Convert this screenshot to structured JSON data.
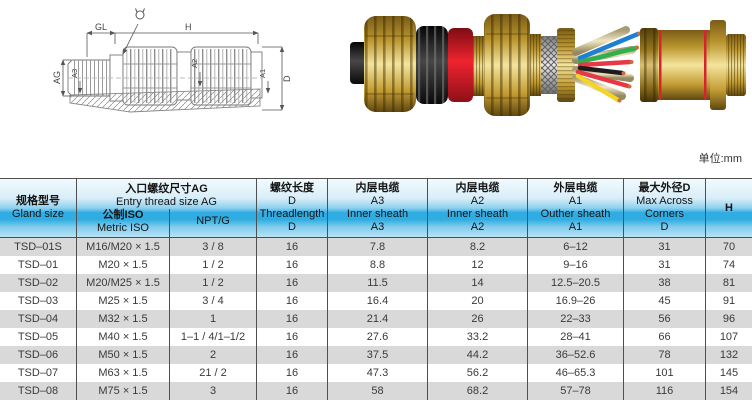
{
  "unit_note": "单位:mm",
  "drawing": {
    "labels": {
      "gl": "GL",
      "h": "H",
      "ag": "AG",
      "a3": "A3",
      "a2": "A2",
      "a1": "A1",
      "d": "D"
    }
  },
  "photo": {
    "description": "exploded brass cable gland with seals and colored wires",
    "wire_colors": [
      "#1f7fd0",
      "#2eb04c",
      "#e63946",
      "#1c1c1c",
      "#e63946",
      "#f4d427"
    ]
  },
  "colors": {
    "header_blue": "#2fade3",
    "row_stripe": "#d9d9d9",
    "brass": "#c9a53e",
    "seal_red": "#e0202b",
    "seal_black": "#1a1a1a"
  },
  "table": {
    "header": {
      "c1": [
        "规格型号",
        "Gland size"
      ],
      "c2": [
        "入口螺纹尺寸AG",
        "Entry thread size AG"
      ],
      "c2a": [
        "公制ISO",
        "Metric ISO"
      ],
      "c2b": [
        "NPT/G"
      ],
      "c3": [
        "螺纹长度",
        "D",
        "Threadlength",
        "D"
      ],
      "c4": [
        "内层电缆",
        "A3",
        "Inner sheath",
        "A3"
      ],
      "c5": [
        "内层电缆",
        "A2",
        "Inner sheath",
        "A2"
      ],
      "c6": [
        "外层电缆",
        "A1",
        "Outher sheath",
        "A1"
      ],
      "c7": [
        "最大外径D",
        "Max Across",
        "Corners",
        "D"
      ],
      "c8": [
        "H"
      ]
    },
    "rows": [
      [
        "TSD–01S",
        "M16/M20 × 1.5",
        "3 / 8",
        "16",
        "7.8",
        "8.2",
        "6–12",
        "31",
        "70"
      ],
      [
        "TSD–01",
        "M20 × 1.5",
        "1 / 2",
        "16",
        "8.8",
        "12",
        "9–16",
        "31",
        "74"
      ],
      [
        "TSD–02",
        "M20/M25 × 1.5",
        "1 / 2",
        "16",
        "11.5",
        "14",
        "12.5–20.5",
        "38",
        "81"
      ],
      [
        "TSD–03",
        "M25 × 1.5",
        "3 / 4",
        "16",
        "16.4",
        "20",
        "16.9–26",
        "45",
        "91"
      ],
      [
        "TSD–04",
        "M32 × 1.5",
        "1",
        "16",
        "21.4",
        "26",
        "22–33",
        "56",
        "96"
      ],
      [
        "TSD–05",
        "M40 × 1.5",
        "1–1 / 4/1–1/2",
        "16",
        "27.6",
        "33.2",
        "28–41",
        "66",
        "107"
      ],
      [
        "TSD–06",
        "M50 × 1.5",
        "2",
        "16",
        "37.5",
        "44.2",
        "36–52.6",
        "78",
        "132"
      ],
      [
        "TSD–07",
        "M63 × 1.5",
        "21 / 2",
        "16",
        "47.3",
        "56.2",
        "46–65.3",
        "101",
        "145"
      ],
      [
        "TSD–08",
        "M75 × 1.5",
        "3",
        "16",
        "58",
        "68.2",
        "57–78",
        "116",
        "154"
      ]
    ]
  }
}
